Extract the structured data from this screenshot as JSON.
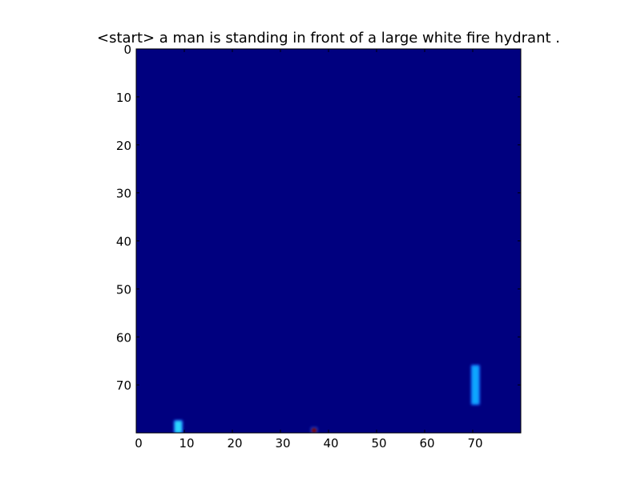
{
  "chart_data": {
    "type": "heatmap",
    "title": "<start> a man is standing in front of a large white fire hydrant .",
    "xlabel": "",
    "ylabel": "",
    "xlim": [
      0,
      80
    ],
    "ylim": [
      80,
      0
    ],
    "y_inverted": true,
    "grid": false,
    "colormap": "jet",
    "background_value": 0.0,
    "x_ticks": [
      "0",
      "10",
      "20",
      "30",
      "40",
      "50",
      "60",
      "70"
    ],
    "y_ticks": [
      "0",
      "10",
      "20",
      "30",
      "40",
      "50",
      "60",
      "70"
    ],
    "hotspots": [
      {
        "x": [
          8,
          9.5
        ],
        "y": [
          77.5,
          80
        ],
        "value": 0.4,
        "color": "#2bd6ff",
        "label_hint": "bottom-left bright spot"
      },
      {
        "x": [
          36.5,
          37.5
        ],
        "y": [
          79,
          80
        ],
        "value": 1.0,
        "color": "#7f0000",
        "label_hint": "bottom dark red dot"
      },
      {
        "x": [
          69.8,
          71.3
        ],
        "y": [
          66,
          74
        ],
        "value": 0.35,
        "color": "#0aa6ff",
        "label_hint": "vertical bar near x=70"
      }
    ],
    "colors": {
      "background": "#00007f",
      "frame": "#000000"
    }
  }
}
